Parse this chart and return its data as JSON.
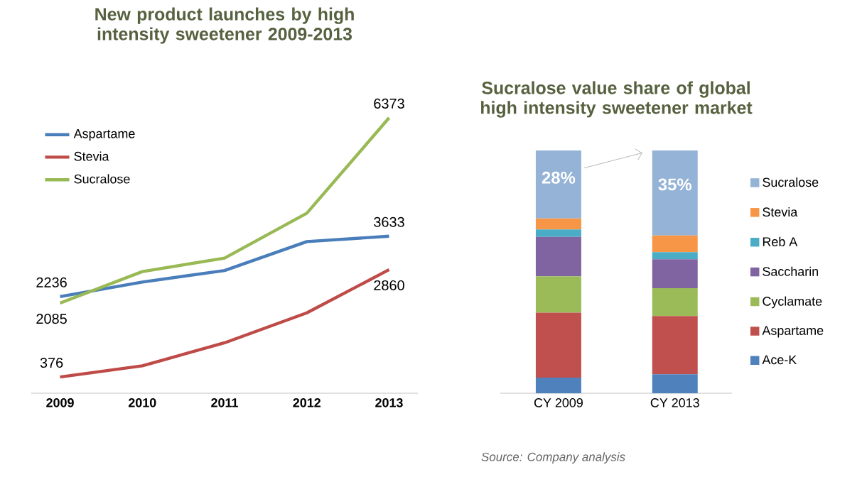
{
  "chart_data": [
    {
      "type": "line",
      "title": "New product launches by high intensity sweetener 2009-2013",
      "categories": [
        "2009",
        "2010",
        "2011",
        "2012",
        "2013"
      ],
      "series": [
        {
          "name": "Aspartame",
          "color": "#4a7ebb",
          "values": [
            2236,
            2573,
            2840,
            3508,
            3633
          ],
          "value_labels": [
            "2236",
            null,
            null,
            null,
            "3633"
          ]
        },
        {
          "name": "Stevia",
          "color": "#be4b48",
          "values": [
            376,
            634,
            1167,
            1859,
            2860
          ],
          "value_labels": [
            "376",
            null,
            null,
            null,
            "2860"
          ]
        },
        {
          "name": "Sucralose",
          "color": "#98b954",
          "values": [
            2085,
            2815,
            3127,
            4166,
            6373
          ],
          "value_labels": [
            "2085",
            null,
            null,
            null,
            "6373"
          ]
        }
      ],
      "tick_labels": "x",
      "legend": "top left",
      "grid": false,
      "marker": "none",
      "line_style": "solid"
    },
    {
      "type": "bar",
      "stacked": true,
      "title": "Sucralose value share of global high intensity sweetener market",
      "categories": [
        "CY 2009",
        "CY 2013"
      ],
      "series": [
        {
          "name": "Ace-K",
          "color": "#4f81bd",
          "values": [
            6.4,
            7.8
          ]
        },
        {
          "name": "Aspartame",
          "color": "#c0504d",
          "values": [
            26.8,
            24.0
          ]
        },
        {
          "name": "Cyclamate",
          "color": "#9bbb59",
          "values": [
            15.0,
            11.5
          ]
        },
        {
          "name": "Saccharin",
          "color": "#8064a2",
          "values": [
            16.2,
            11.9
          ]
        },
        {
          "name": "Reb A",
          "color": "#4bacc6",
          "values": [
            3.1,
            2.9
          ]
        },
        {
          "name": "Stevia",
          "color": "#f79646",
          "values": [
            4.5,
            6.9
          ]
        },
        {
          "name": "Sucralose",
          "color": "#95b3d7",
          "values": [
            28,
            35
          ],
          "value_labels": [
            "28%",
            "35%"
          ]
        }
      ],
      "tick_labels": "x",
      "legend": "right",
      "grid": false,
      "annotations": [
        "Source: Company analysis"
      ]
    }
  ]
}
